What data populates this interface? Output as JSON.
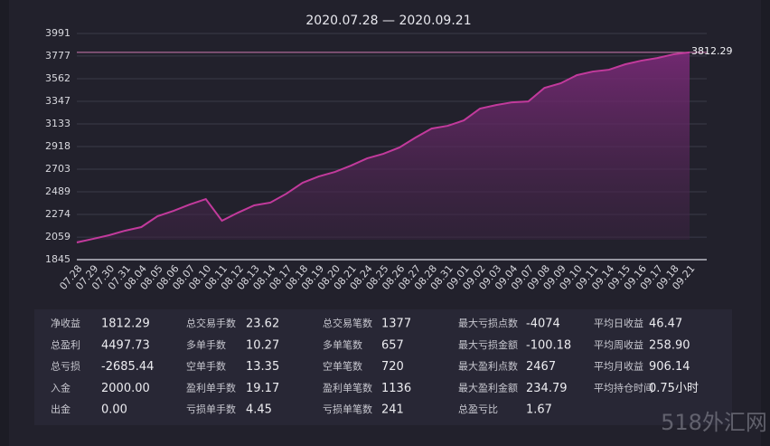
{
  "chart_data": {
    "type": "area",
    "title": "2020.07.28 — 2020.09.21",
    "categories": [
      "07.28",
      "07.29",
      "07.30",
      "07.31",
      "08.04",
      "08.05",
      "08.06",
      "08.07",
      "08.10",
      "08.11",
      "08.12",
      "08.13",
      "08.14",
      "08.17",
      "08.18",
      "08.19",
      "08.20",
      "08.21",
      "08.24",
      "08.25",
      "08.26",
      "08.27",
      "08.28",
      "08.31",
      "09.01",
      "09.02",
      "09.03",
      "09.04",
      "09.07",
      "09.08",
      "09.09",
      "09.10",
      "09.11",
      "09.14",
      "09.15",
      "09.16",
      "09.17",
      "09.18",
      "09.21"
    ],
    "values": [
      2008,
      2042,
      2077,
      2120,
      2154,
      2257,
      2308,
      2368,
      2420,
      2214,
      2291,
      2360,
      2386,
      2471,
      2574,
      2634,
      2677,
      2737,
      2806,
      2849,
      2909,
      3003,
      3089,
      3115,
      3166,
      3278,
      3312,
      3338,
      3346,
      3475,
      3518,
      3595,
      3630,
      3647,
      3698,
      3733,
      3758,
      3793,
      3812.29
    ],
    "end_label": "3812.29",
    "color": "#c23a9c",
    "ylim": [
      1845,
      3991
    ],
    "yticks": [
      1845,
      2059,
      2274,
      2489,
      2703,
      2918,
      3133,
      3347,
      3562,
      3777,
      3991
    ],
    "grid": true
  },
  "stats": [
    [
      {
        "label": "净收益",
        "value": "1812.29"
      },
      {
        "label": "总盈利",
        "value": "4497.73"
      },
      {
        "label": "总亏损",
        "value": "-2685.44"
      },
      {
        "label": "入金",
        "value": "2000.00"
      },
      {
        "label": "出金",
        "value": "0.00"
      }
    ],
    [
      {
        "label": "总交易手数",
        "value": "23.62"
      },
      {
        "label": "多单手数",
        "value": "10.27"
      },
      {
        "label": "空单手数",
        "value": "13.35"
      },
      {
        "label": "盈利单手数",
        "value": "19.17"
      },
      {
        "label": "亏损单手数",
        "value": "4.45"
      }
    ],
    [
      {
        "label": "总交易笔数",
        "value": "1377"
      },
      {
        "label": "多单笔数",
        "value": "657"
      },
      {
        "label": "空单笔数",
        "value": "720"
      },
      {
        "label": "盈利单笔数",
        "value": "1136"
      },
      {
        "label": "亏损单笔数",
        "value": "241"
      }
    ],
    [
      {
        "label": "最大亏损点数",
        "value": "-4074"
      },
      {
        "label": "最大亏损金额",
        "value": "-100.18"
      },
      {
        "label": "最大盈利点数",
        "value": "2467"
      },
      {
        "label": "最大盈利金额",
        "value": "234.79"
      },
      {
        "label": "总盈亏比",
        "value": "1.67"
      }
    ],
    [
      {
        "label": "平均日收益",
        "value": "46.47"
      },
      {
        "label": "平均周收益",
        "value": "258.90"
      },
      {
        "label": "平均月收益",
        "value": "906.14"
      },
      {
        "label": "平均持仓时间",
        "value": "0.75小时"
      }
    ]
  ],
  "watermark": "518外汇网"
}
